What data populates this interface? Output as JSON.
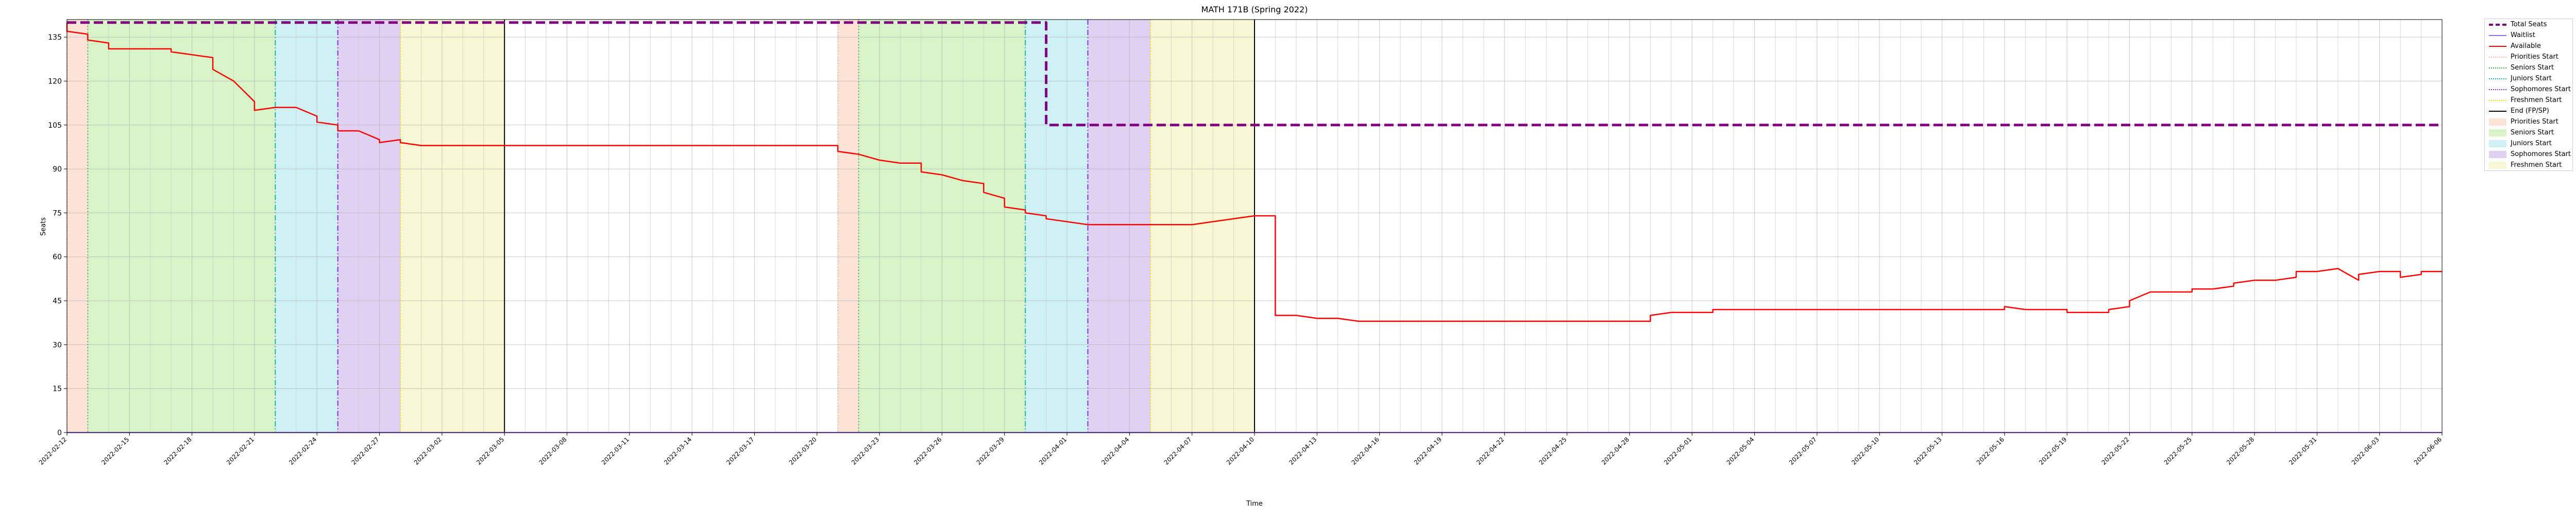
{
  "chart_data": {
    "type": "line",
    "title": "MATH 171B (Spring 2022)",
    "xlabel": "Time",
    "ylabel": "Seats",
    "ylim": [
      0,
      141
    ],
    "yticks": [
      0,
      15,
      30,
      45,
      60,
      75,
      90,
      105,
      120,
      135
    ],
    "grid": true,
    "legend_position": "outside-right-top",
    "x_range": [
      "2022-02-12",
      "2022-06-06"
    ],
    "x_tick_labels": [
      "2022-02-12",
      "2022-02-15",
      "2022-02-18",
      "2022-02-21",
      "2022-02-24",
      "2022-02-27",
      "2022-03-02",
      "2022-03-05",
      "2022-03-08",
      "2022-03-11",
      "2022-03-14",
      "2022-03-17",
      "2022-03-20",
      "2022-03-23",
      "2022-03-26",
      "2022-03-29",
      "2022-04-01",
      "2022-04-04",
      "2022-04-07",
      "2022-04-10",
      "2022-04-13",
      "2022-04-16",
      "2022-04-19",
      "2022-04-22",
      "2022-04-25",
      "2022-04-28",
      "2022-05-01",
      "2022-05-04",
      "2022-05-07",
      "2022-05-10",
      "2022-05-13",
      "2022-05-16",
      "2022-05-19",
      "2022-05-22",
      "2022-05-25",
      "2022-05-28",
      "2022-05-31",
      "2022-06-03",
      "2022-06-06"
    ],
    "series": [
      {
        "name": "Total Seats",
        "color": "#800080",
        "style": "dashed",
        "points": [
          [
            "2022-02-12",
            140
          ],
          [
            "2022-03-31",
            140
          ],
          [
            "2022-03-31",
            105
          ],
          [
            "2022-06-06",
            105
          ]
        ]
      },
      {
        "name": "Waitlist",
        "color": "#9370DB",
        "style": "solid",
        "points": [
          [
            "2022-02-12",
            0
          ],
          [
            "2022-06-06",
            0
          ]
        ]
      },
      {
        "name": "Available",
        "color": "#ff0000",
        "style": "solid",
        "points": [
          [
            "2022-02-12",
            140
          ],
          [
            "2022-02-12",
            137
          ],
          [
            "2022-02-13",
            136
          ],
          [
            "2022-02-13",
            134
          ],
          [
            "2022-02-14",
            133
          ],
          [
            "2022-02-14",
            131
          ],
          [
            "2022-02-17",
            131
          ],
          [
            "2022-02-17",
            130
          ],
          [
            "2022-02-18",
            129
          ],
          [
            "2022-02-19",
            128
          ],
          [
            "2022-02-19",
            124
          ],
          [
            "2022-02-20",
            120
          ],
          [
            "2022-02-21",
            113
          ],
          [
            "2022-02-21",
            110
          ],
          [
            "2022-02-22",
            111
          ],
          [
            "2022-02-23",
            111
          ],
          [
            "2022-02-24",
            108
          ],
          [
            "2022-02-24",
            106
          ],
          [
            "2022-02-25",
            105
          ],
          [
            "2022-02-25",
            103
          ],
          [
            "2022-02-26",
            103
          ],
          [
            "2022-02-27",
            100
          ],
          [
            "2022-02-27",
            99
          ],
          [
            "2022-02-28",
            100
          ],
          [
            "2022-02-28",
            99
          ],
          [
            "2022-03-01",
            98
          ],
          [
            "2022-03-21",
            98
          ],
          [
            "2022-03-21",
            96
          ],
          [
            "2022-03-22",
            95
          ],
          [
            "2022-03-23",
            93
          ],
          [
            "2022-03-24",
            92
          ],
          [
            "2022-03-25",
            92
          ],
          [
            "2022-03-25",
            89
          ],
          [
            "2022-03-26",
            88
          ],
          [
            "2022-03-27",
            86
          ],
          [
            "2022-03-28",
            85
          ],
          [
            "2022-03-28",
            82
          ],
          [
            "2022-03-29",
            80
          ],
          [
            "2022-03-29",
            77
          ],
          [
            "2022-03-30",
            76
          ],
          [
            "2022-03-30",
            75
          ],
          [
            "2022-03-31",
            74
          ],
          [
            "2022-03-31",
            73
          ],
          [
            "2022-04-01",
            72
          ],
          [
            "2022-04-02",
            71
          ],
          [
            "2022-04-07",
            71
          ],
          [
            "2022-04-08",
            72
          ],
          [
            "2022-04-09",
            73
          ],
          [
            "2022-04-10",
            74
          ],
          [
            "2022-04-11",
            74
          ],
          [
            "2022-04-11",
            40
          ],
          [
            "2022-04-12",
            40
          ],
          [
            "2022-04-13",
            39
          ],
          [
            "2022-04-14",
            39
          ],
          [
            "2022-04-15",
            38
          ],
          [
            "2022-04-29",
            38
          ],
          [
            "2022-04-29",
            40
          ],
          [
            "2022-04-30",
            41
          ],
          [
            "2022-05-02",
            41
          ],
          [
            "2022-05-02",
            42
          ],
          [
            "2022-05-10",
            42
          ],
          [
            "2022-05-16",
            42
          ],
          [
            "2022-05-16",
            43
          ],
          [
            "2022-05-17",
            42
          ],
          [
            "2022-05-19",
            42
          ],
          [
            "2022-05-19",
            41
          ],
          [
            "2022-05-21",
            41
          ],
          [
            "2022-05-21",
            42
          ],
          [
            "2022-05-22",
            43
          ],
          [
            "2022-05-22",
            45
          ],
          [
            "2022-05-23",
            48
          ],
          [
            "2022-05-25",
            48
          ],
          [
            "2022-05-25",
            49
          ],
          [
            "2022-05-26",
            49
          ],
          [
            "2022-05-27",
            50
          ],
          [
            "2022-05-27",
            51
          ],
          [
            "2022-05-28",
            52
          ],
          [
            "2022-05-29",
            52
          ],
          [
            "2022-05-30",
            53
          ],
          [
            "2022-05-30",
            55
          ],
          [
            "2022-05-31",
            55
          ],
          [
            "2022-06-01",
            56
          ],
          [
            "2022-06-02",
            52
          ],
          [
            "2022-06-02",
            54
          ],
          [
            "2022-06-03",
            55
          ],
          [
            "2022-06-04",
            55
          ],
          [
            "2022-06-04",
            53
          ],
          [
            "2022-06-05",
            54
          ],
          [
            "2022-06-05",
            55
          ],
          [
            "2022-06-06",
            55
          ]
        ]
      }
    ],
    "vertical_lines": [
      {
        "name": "Priorities Start",
        "color": "#F5B7A1",
        "style": "dotted"
      },
      {
        "name": "Seniors Start",
        "color": "#4CAF50",
        "style": "dotted"
      },
      {
        "name": "Juniors Start",
        "color": "#20B2AA",
        "style": "dashdot"
      },
      {
        "name": "Sophomores Start",
        "color": "#8A2BE2",
        "style": "dashdot"
      },
      {
        "name": "Freshmen Start",
        "color": "#FFD700",
        "style": "dotted"
      },
      {
        "name": "End (FP/SP)",
        "color": "#000000",
        "style": "solid"
      }
    ],
    "shaded_regions": [
      {
        "name": "Priorities Start",
        "color": "#FDE2D6"
      },
      {
        "name": "Seniors Start",
        "color": "#D8F3C8"
      },
      {
        "name": "Juniors Start",
        "color": "#CDF1F4"
      },
      {
        "name": "Sophomores Start",
        "color": "#E0D1F3"
      },
      {
        "name": "Freshmen Start",
        "color": "#F7F7D4"
      }
    ],
    "periods": [
      {
        "priorities": [
          "2022-02-12",
          "2022-02-13"
        ],
        "seniors": [
          "2022-02-13",
          "2022-02-22"
        ],
        "juniors": [
          "2022-02-22",
          "2022-02-25"
        ],
        "sophomores": [
          "2022-02-25",
          "2022-02-28"
        ],
        "freshmen": [
          "2022-02-28",
          "2022-03-05"
        ],
        "end": "2022-03-05"
      },
      {
        "priorities": [
          "2022-03-21",
          "2022-03-22"
        ],
        "seniors": [
          "2022-03-22",
          "2022-03-30"
        ],
        "juniors": [
          "2022-03-30",
          "2022-04-02"
        ],
        "sophomores": [
          "2022-04-02",
          "2022-04-05"
        ],
        "freshmen": [
          "2022-04-05",
          "2022-04-10"
        ],
        "end": "2022-04-10"
      }
    ]
  },
  "legend": [
    {
      "label": "Total Seats",
      "kind": "line",
      "color": "#800080",
      "style": "dashed"
    },
    {
      "label": "Waitlist",
      "kind": "line",
      "color": "#9370DB",
      "style": "solid"
    },
    {
      "label": "Available",
      "kind": "line",
      "color": "#ff0000",
      "style": "solid"
    },
    {
      "label": "Priorities Start",
      "kind": "line",
      "color": "#F5B7A1",
      "style": "dotted"
    },
    {
      "label": "Seniors Start",
      "kind": "line",
      "color": "#4CAF50",
      "style": "dotted"
    },
    {
      "label": "Juniors Start",
      "kind": "line",
      "color": "#20B2AA",
      "style": "dashdot"
    },
    {
      "label": "Sophomores Start",
      "kind": "line",
      "color": "#8A2BE2",
      "style": "dashdot"
    },
    {
      "label": "Freshmen Start",
      "kind": "line",
      "color": "#FFD700",
      "style": "dotted"
    },
    {
      "label": "End (FP/SP)",
      "kind": "line",
      "color": "#000000",
      "style": "solid"
    },
    {
      "label": "Priorities Start",
      "kind": "patch",
      "color": "#FDE2D6"
    },
    {
      "label": "Seniors Start",
      "kind": "patch",
      "color": "#D8F3C8"
    },
    {
      "label": "Juniors Start",
      "kind": "patch",
      "color": "#CDF1F4"
    },
    {
      "label": "Sophomores Start",
      "kind": "patch",
      "color": "#E0D1F3"
    },
    {
      "label": "Freshmen Start",
      "kind": "patch",
      "color": "#F7F7D4"
    }
  ]
}
